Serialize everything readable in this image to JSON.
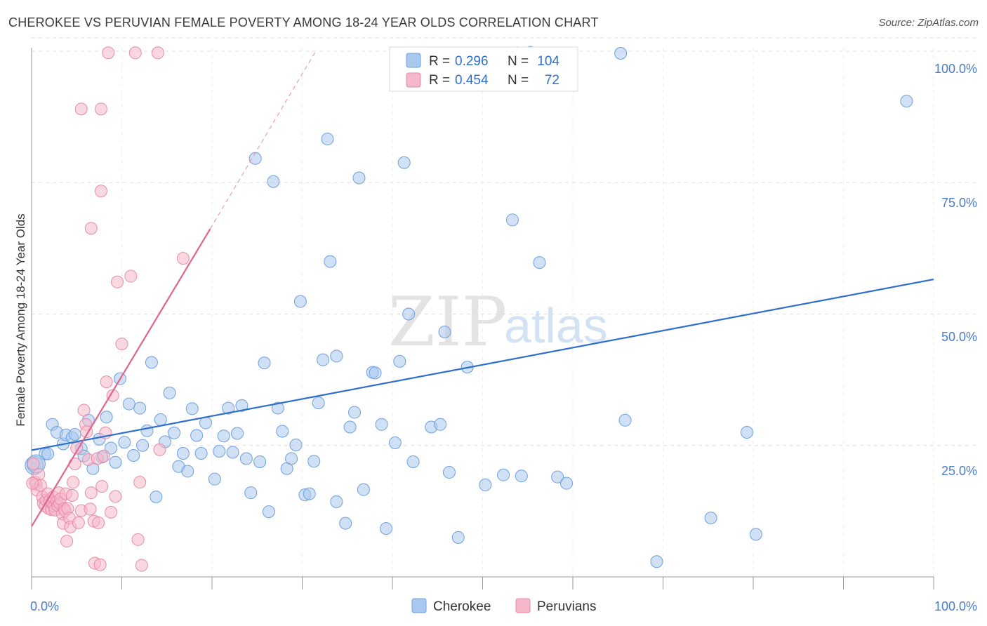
{
  "title": "CHEROKEE VS PERUVIAN FEMALE POVERTY AMONG 18-24 YEAR OLDS CORRELATION CHART",
  "source": "Source: ZipAtlas.com",
  "watermark": {
    "zip": "ZIP",
    "atlas": "atlas"
  },
  "colors": {
    "cherokee_fill": "#a9c8ee",
    "cherokee_stroke": "#6f9fdc",
    "cherokee_line": "#2e6fcc",
    "peruvian_fill": "#f5b8ca",
    "peruvian_stroke": "#e88aa6",
    "peruvian_line": "#e0648e",
    "tick_text": "#4a7cc9",
    "grid": "#dedede"
  },
  "stats_legend": {
    "r_label": "R =",
    "n_label": "N =",
    "rows": [
      {
        "r": "0.296",
        "n": "104"
      },
      {
        "r": "0.454",
        "n": "72"
      }
    ]
  },
  "chart_data": {
    "type": "scatter",
    "title": "CHEROKEE VS PERUVIAN FEMALE POVERTY AMONG 18-24 YEAR OLDS CORRELATION CHART",
    "xlabel": "",
    "ylabel": "Female Poverty Among 18-24 Year Olds",
    "xlim": [
      0,
      100
    ],
    "ylim": [
      0,
      102
    ],
    "x_tick_labels": [
      "0.0%",
      "100.0%"
    ],
    "y_ticks": [
      25,
      50,
      75,
      100
    ],
    "y_tick_labels": [
      "25.0%",
      "50.0%",
      "75.0%",
      "100.0%"
    ],
    "grid": true,
    "legend_position": "bottom-center",
    "series": [
      {
        "name": "Cherokee",
        "R": 0.296,
        "N": 104,
        "trend": {
          "x": [
            0,
            100
          ],
          "y": [
            24.1,
            56.6
          ]
        },
        "points": [
          [
            0.3,
            21.2
          ],
          [
            1.5,
            23.4
          ],
          [
            1.8,
            23.4
          ],
          [
            2.3,
            29.0
          ],
          [
            2.8,
            27.5
          ],
          [
            3.5,
            25.3
          ],
          [
            3.8,
            27.0
          ],
          [
            4.5,
            26.5
          ],
          [
            4.8,
            27.1
          ],
          [
            5.5,
            24.4
          ],
          [
            5.8,
            23.0
          ],
          [
            6.3,
            29.8
          ],
          [
            6.8,
            20.6
          ],
          [
            7.5,
            26.2
          ],
          [
            7.8,
            22.8
          ],
          [
            8.3,
            30.4
          ],
          [
            8.8,
            24.5
          ],
          [
            9.3,
            21.8
          ],
          [
            9.8,
            37.7
          ],
          [
            10.3,
            25.6
          ],
          [
            10.8,
            32.9
          ],
          [
            11.3,
            23.1
          ],
          [
            12.0,
            32.1
          ],
          [
            12.3,
            25.0
          ],
          [
            12.8,
            27.8
          ],
          [
            13.3,
            40.8
          ],
          [
            13.8,
            15.2
          ],
          [
            14.3,
            29.9
          ],
          [
            14.8,
            25.7
          ],
          [
            15.3,
            35.0
          ],
          [
            15.8,
            27.4
          ],
          [
            16.3,
            21.0
          ],
          [
            16.8,
            23.5
          ],
          [
            17.3,
            20.1
          ],
          [
            17.8,
            32.0
          ],
          [
            18.3,
            26.9
          ],
          [
            18.8,
            23.5
          ],
          [
            19.3,
            29.3
          ],
          [
            20.3,
            18.6
          ],
          [
            20.8,
            23.9
          ],
          [
            21.3,
            26.8
          ],
          [
            21.8,
            32.1
          ],
          [
            22.3,
            23.7
          ],
          [
            22.8,
            27.3
          ],
          [
            23.3,
            32.6
          ],
          [
            23.8,
            22.5
          ],
          [
            24.3,
            16.0
          ],
          [
            24.8,
            79.6
          ],
          [
            25.3,
            21.9
          ],
          [
            25.8,
            40.7
          ],
          [
            26.3,
            12.4
          ],
          [
            26.8,
            75.2
          ],
          [
            27.3,
            32.1
          ],
          [
            27.8,
            27.7
          ],
          [
            28.3,
            20.6
          ],
          [
            28.8,
            22.5
          ],
          [
            29.3,
            25.1
          ],
          [
            29.8,
            52.4
          ],
          [
            30.3,
            15.6
          ],
          [
            30.8,
            15.8
          ],
          [
            31.3,
            22.0
          ],
          [
            31.8,
            33.1
          ],
          [
            32.3,
            41.3
          ],
          [
            32.8,
            83.3
          ],
          [
            33.1,
            60.0
          ],
          [
            33.8,
            42.0
          ],
          [
            33.8,
            14.3
          ],
          [
            34.8,
            10.2
          ],
          [
            35.3,
            28.5
          ],
          [
            35.8,
            31.3
          ],
          [
            36.3,
            75.9
          ],
          [
            36.8,
            16.6
          ],
          [
            37.8,
            38.9
          ],
          [
            38.1,
            38.8
          ],
          [
            38.8,
            29.0
          ],
          [
            39.3,
            9.2
          ],
          [
            40.3,
            25.5
          ],
          [
            40.8,
            41.0
          ],
          [
            41.3,
            78.8
          ],
          [
            41.8,
            50.0
          ],
          [
            42.3,
            21.9
          ],
          [
            44.3,
            28.5
          ],
          [
            45.3,
            29.0
          ],
          [
            45.8,
            46.6
          ],
          [
            46.3,
            19.9
          ],
          [
            47.3,
            7.5
          ],
          [
            48.3,
            39.9
          ],
          [
            50.3,
            17.5
          ],
          [
            52.3,
            19.4
          ],
          [
            53.3,
            67.9
          ],
          [
            53.8,
            99.7
          ],
          [
            54.3,
            19.2
          ],
          [
            55.3,
            99.8
          ],
          [
            56.3,
            59.8
          ],
          [
            58.3,
            19.0
          ],
          [
            59.3,
            17.8
          ],
          [
            65.3,
            99.6
          ],
          [
            65.8,
            29.8
          ],
          [
            69.3,
            2.9
          ],
          [
            75.3,
            11.2
          ],
          [
            79.3,
            27.5
          ],
          [
            80.3,
            8.1
          ],
          [
            97.0,
            90.5
          ],
          [
            0.5,
            21.5
          ]
        ]
      },
      {
        "name": "Peruvians",
        "R": 0.454,
        "N": 72,
        "trend": {
          "x": [
            0,
            19.8
          ],
          "y": [
            9.6,
            66.2
          ]
        },
        "trend_extension": {
          "x": [
            19.8,
            31.5
          ],
          "y": [
            66.2,
            100
          ]
        },
        "points": [
          [
            0.2,
            21.5
          ],
          [
            0.4,
            18.0
          ],
          [
            0.5,
            17.6
          ],
          [
            0.6,
            16.5
          ],
          [
            0.8,
            19.5
          ],
          [
            1.0,
            17.4
          ],
          [
            1.2,
            15.2
          ],
          [
            1.3,
            14.0
          ],
          [
            1.5,
            13.5
          ],
          [
            1.6,
            14.6
          ],
          [
            1.8,
            15.8
          ],
          [
            1.9,
            13.0
          ],
          [
            2.0,
            14.5
          ],
          [
            2.2,
            12.8
          ],
          [
            2.3,
            14.0
          ],
          [
            2.4,
            15.2
          ],
          [
            2.5,
            13.5
          ],
          [
            2.6,
            12.7
          ],
          [
            2.8,
            14.3
          ],
          [
            2.9,
            13.6
          ],
          [
            3.0,
            16.0
          ],
          [
            3.1,
            14.0
          ],
          [
            3.2,
            14.8
          ],
          [
            3.4,
            12.0
          ],
          [
            3.5,
            10.2
          ],
          [
            3.6,
            13.0
          ],
          [
            3.7,
            12.6
          ],
          [
            3.8,
            15.8
          ],
          [
            3.9,
            6.8
          ],
          [
            4.0,
            13.0
          ],
          [
            4.2,
            11.2
          ],
          [
            4.3,
            9.5
          ],
          [
            4.5,
            15.5
          ],
          [
            4.6,
            18.0
          ],
          [
            4.8,
            21.5
          ],
          [
            5.0,
            24.5
          ],
          [
            5.2,
            10.3
          ],
          [
            5.5,
            12.6
          ],
          [
            5.8,
            31.7
          ],
          [
            6.0,
            29.0
          ],
          [
            6.1,
            27.6
          ],
          [
            6.3,
            22.3
          ],
          [
            6.5,
            12.9
          ],
          [
            6.6,
            16.0
          ],
          [
            6.9,
            10.6
          ],
          [
            7.0,
            2.6
          ],
          [
            7.3,
            22.5
          ],
          [
            7.4,
            10.3
          ],
          [
            7.6,
            2.3
          ],
          [
            7.8,
            17.2
          ],
          [
            8.0,
            23.0
          ],
          [
            8.2,
            27.4
          ],
          [
            8.3,
            37.1
          ],
          [
            8.5,
            99.7
          ],
          [
            8.8,
            12.3
          ],
          [
            9.0,
            34.5
          ],
          [
            9.3,
            15.3
          ],
          [
            9.5,
            56.1
          ],
          [
            10.0,
            44.3
          ],
          [
            11.0,
            57.2
          ],
          [
            11.5,
            99.7
          ],
          [
            11.8,
            7.1
          ],
          [
            12.0,
            18.0
          ],
          [
            12.2,
            2.2
          ],
          [
            14.0,
            99.7
          ],
          [
            14.2,
            24.2
          ],
          [
            16.8,
            60.6
          ],
          [
            5.5,
            89.0
          ],
          [
            7.7,
            89.0
          ],
          [
            7.7,
            73.4
          ],
          [
            6.6,
            66.3
          ],
          [
            0.1,
            17.8
          ]
        ]
      }
    ]
  },
  "axis_text": {
    "ylabel": "Female Poverty Among 18-24 Year Olds",
    "x_min_label": "0.0%",
    "x_max_label": "100.0%",
    "y_labels": [
      "25.0%",
      "50.0%",
      "75.0%",
      "100.0%"
    ]
  },
  "bottom_legend": [
    {
      "name": "Cherokee"
    },
    {
      "name": "Peruvians"
    }
  ]
}
